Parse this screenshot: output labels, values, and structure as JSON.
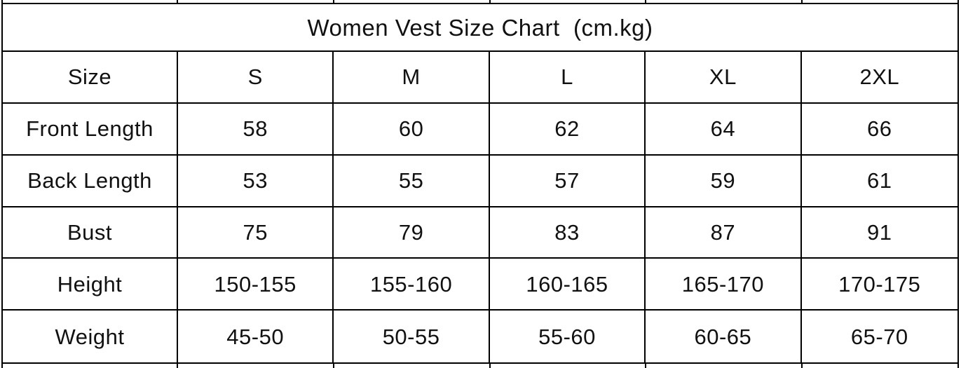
{
  "page": {
    "background": "#ffffff",
    "border_color": "#000000",
    "text_color": "#111111"
  },
  "chart_data": {
    "type": "table",
    "title": "Women Vest Size Chart  (cm.kg)",
    "columns": [
      "Size",
      "S",
      "M",
      "L",
      "XL",
      "2XL"
    ],
    "rows": [
      {
        "label": "Front Length",
        "values": [
          "58",
          "60",
          "62",
          "64",
          "66"
        ]
      },
      {
        "label": "Back Length",
        "values": [
          "53",
          "55",
          "57",
          "59",
          "61"
        ]
      },
      {
        "label": "Bust",
        "values": [
          "75",
          "79",
          "83",
          "87",
          "91"
        ]
      },
      {
        "label": "Height",
        "values": [
          "150-155",
          "155-160",
          "160-165",
          "165-170",
          "170-175"
        ]
      },
      {
        "label": "Weight",
        "values": [
          "45-50",
          "50-55",
          "55-60",
          "60-65",
          "65-70"
        ]
      }
    ],
    "layout": {
      "grid": "on",
      "title_row_spans_all_columns": true,
      "cropped_row_above": true,
      "cropped_row_below": true
    }
  }
}
